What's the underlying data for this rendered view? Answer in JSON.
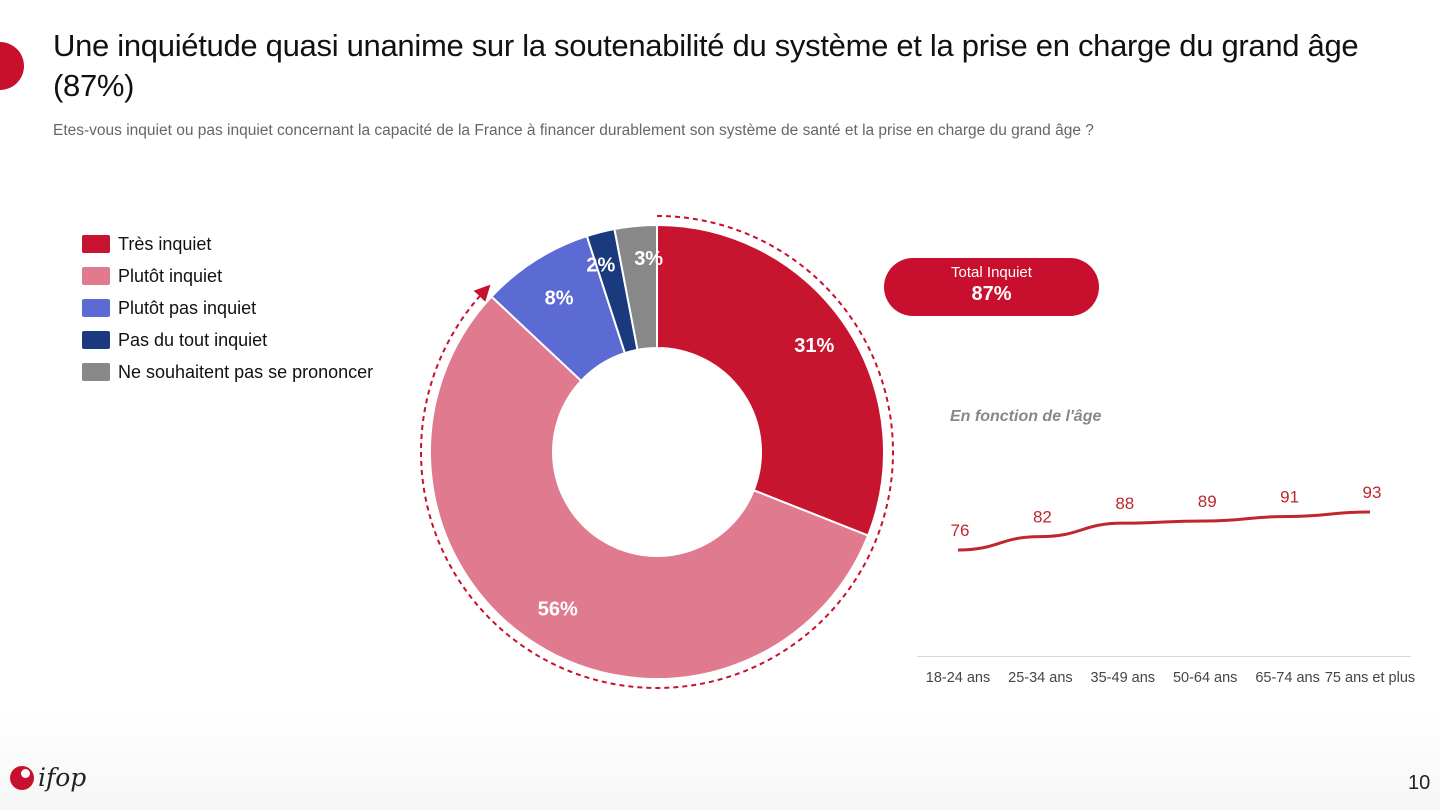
{
  "title": "Une inquiétude quasi unanime sur la soutenabilité du système et la prise en charge du grand âge (87%)",
  "subtitle": "Etes-vous inquiet ou pas inquiet concernant la capacité de la France à financer durablement son système de santé et la prise en charge du grand âge ?",
  "total": {
    "label": "Total Inquiet",
    "value": "87%"
  },
  "age_section_title": "En fonction de l'âge",
  "page_number": "10",
  "logo_text": "ifop",
  "colors": {
    "accent": "#c8102e"
  },
  "chart_data": [
    {
      "type": "pie",
      "slices": [
        {
          "name": "Très inquiet",
          "value": 31,
          "label": "31%",
          "color": "#c8152f"
        },
        {
          "name": "Plutôt inquiet",
          "value": 56,
          "label": "56%",
          "color": "#e07a8f"
        },
        {
          "name": "Plutôt pas inquiet",
          "value": 8,
          "label": "8%",
          "color": "#5c6ad4"
        },
        {
          "name": "Pas du tout inquiet",
          "value": 2,
          "label": "2%",
          "color": "#1b3a7e"
        },
        {
          "name": "Ne souhaitent pas se prononcer",
          "value": 3,
          "label": "3%",
          "color": "#888888"
        }
      ],
      "legend_position": "left"
    },
    {
      "type": "line",
      "categories": [
        "18-24 ans",
        "25-34 ans",
        "35-49 ans",
        "50-64 ans",
        "65-74 ans",
        "75 ans et plus"
      ],
      "series": [
        {
          "values": [
            76,
            82,
            88,
            89,
            91,
            93
          ],
          "color": "#c0272d"
        }
      ],
      "grid": false
    }
  ]
}
